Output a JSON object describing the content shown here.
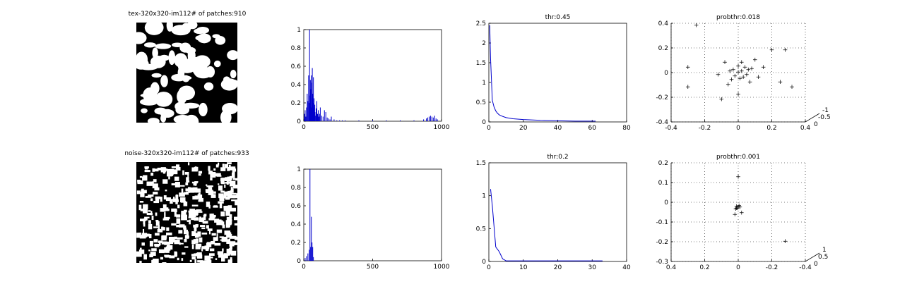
{
  "rows": [
    {
      "image_title": "tex-320x320-im112# of patches:910",
      "image_kind": "texture-image"
    },
    {
      "image_title": "noise-320x320-im112# of patches:933",
      "image_kind": "noise-image"
    }
  ],
  "chart_data": [
    {
      "id": "r1-hist",
      "type": "bar",
      "title": "",
      "xlim": [
        0,
        1000
      ],
      "ylim": [
        0,
        1
      ],
      "xticks": [
        "0",
        "500",
        "1000"
      ],
      "yticks": [
        "0",
        "0.2",
        "0.4",
        "0.6",
        "0.8",
        "1"
      ],
      "color": "#0000cc",
      "x": [
        5,
        10,
        15,
        20,
        25,
        30,
        35,
        38,
        42,
        45,
        48,
        50,
        52,
        55,
        58,
        60,
        62,
        65,
        68,
        70,
        72,
        75,
        78,
        80,
        85,
        88,
        90,
        95,
        100,
        105,
        110,
        115,
        120,
        130,
        140,
        150,
        160,
        170,
        180,
        190,
        200,
        220,
        240,
        260,
        280,
        300,
        400,
        500,
        600,
        700,
        800,
        870,
        890,
        900,
        910,
        920,
        930,
        940,
        950,
        960,
        970
      ],
      "values": [
        0.08,
        0.12,
        0.05,
        0.15,
        0.3,
        0.22,
        0.5,
        0.2,
        1,
        0.28,
        0.45,
        0.35,
        0.15,
        0.5,
        0.42,
        0.25,
        0.58,
        0.3,
        0.2,
        0.48,
        0.15,
        0.25,
        0.1,
        0.18,
        0.06,
        0.1,
        0.14,
        0.22,
        0.08,
        0.12,
        0.05,
        0.08,
        0.15,
        0.06,
        0.05,
        0.12,
        0.1,
        0.04,
        0.03,
        0.02,
        0.05,
        0.02,
        0.01,
        0.01,
        0.01,
        0.01,
        0.01,
        0.01,
        0.01,
        0.01,
        0.01,
        0.02,
        0.03,
        0.04,
        0.05,
        0.06,
        0.05,
        0.04,
        0.06,
        0.03,
        0.02
      ]
    },
    {
      "id": "r1-curve",
      "type": "line",
      "title": "thr:0.45",
      "xlim": [
        0,
        80
      ],
      "ylim": [
        0,
        2.5
      ],
      "xticks": [
        "0",
        "20",
        "40",
        "60",
        "80"
      ],
      "yticks": [
        "0",
        "0.5",
        "1",
        "1.5",
        "2",
        "2.5"
      ],
      "color": "#0000cc",
      "x": [
        0.5,
        1,
        2,
        3,
        4,
        5,
        6,
        8,
        10,
        14,
        20,
        30,
        40,
        50,
        62
      ],
      "y": [
        2.45,
        1.6,
        0.55,
        0.38,
        0.28,
        0.22,
        0.18,
        0.14,
        0.11,
        0.08,
        0.06,
        0.04,
        0.03,
        0.02,
        0.02
      ]
    },
    {
      "id": "r1-scatter",
      "type": "scatter",
      "title": "probthr:0.018",
      "xlim": [
        -0.4,
        0.4
      ],
      "ylim": [
        -0.4,
        0.4
      ],
      "xticks": [
        "-0.4",
        "-0.2",
        "0",
        "0.2",
        "0.4"
      ],
      "yticks": [
        "-0.4",
        "-0.2",
        "0",
        "0.2",
        "0.4"
      ],
      "ztick_labels": [
        "0",
        "-0.5",
        "-1"
      ],
      "color": "#888888",
      "points": [
        [
          0.0,
          0.0
        ],
        [
          0.02,
          0.01
        ],
        [
          -0.03,
          0.02
        ],
        [
          0.05,
          -0.02
        ],
        [
          0.01,
          -0.05
        ],
        [
          -0.02,
          -0.03
        ],
        [
          0.04,
          0.04
        ],
        [
          -0.05,
          0.01
        ],
        [
          0.06,
          0.02
        ],
        [
          0.0,
          0.05
        ],
        [
          0.03,
          -0.04
        ],
        [
          -0.04,
          -0.06
        ],
        [
          0.08,
          0.03
        ],
        [
          0.1,
          0.1
        ],
        [
          -0.08,
          0.08
        ],
        [
          0.15,
          0.04
        ],
        [
          -0.12,
          -0.02
        ],
        [
          0.2,
          0.18
        ],
        [
          0.28,
          0.18
        ],
        [
          -0.3,
          0.04
        ],
        [
          -0.3,
          -0.12
        ],
        [
          0.25,
          -0.08
        ],
        [
          -0.25,
          0.38
        ],
        [
          0.32,
          -0.12
        ],
        [
          0.0,
          -0.18
        ],
        [
          -0.1,
          -0.22
        ],
        [
          0.12,
          -0.04
        ],
        [
          0.07,
          -0.08
        ],
        [
          -0.06,
          -0.1
        ],
        [
          0.02,
          0.08
        ]
      ]
    },
    {
      "id": "r2-hist",
      "type": "bar",
      "title": "",
      "xlim": [
        0,
        1000
      ],
      "ylim": [
        0,
        1
      ],
      "xticks": [
        "0",
        "500",
        "1000"
      ],
      "yticks": [
        "0",
        "0.2",
        "0.4",
        "0.6",
        "0.8",
        "1"
      ],
      "color": "#0000cc",
      "x": [
        10,
        20,
        30,
        40,
        45,
        50,
        55,
        60,
        65,
        70
      ],
      "values": [
        0.03,
        0.05,
        0.08,
        0.12,
        1,
        0.15,
        0.48,
        0.2,
        0.15,
        0.04
      ]
    },
    {
      "id": "r2-curve",
      "type": "line",
      "title": "thr:0.2",
      "xlim": [
        0,
        40
      ],
      "ylim": [
        0,
        1.5
      ],
      "xticks": [
        "0",
        "10",
        "20",
        "30",
        "40"
      ],
      "yticks": [
        "0",
        "0.5",
        "1",
        "1.5"
      ],
      "color": "#0000cc",
      "x": [
        0.5,
        1,
        2,
        3,
        4,
        5,
        10,
        20,
        33
      ],
      "y": [
        1.1,
        0.85,
        0.22,
        0.15,
        0.04,
        0.01,
        0.01,
        0.01,
        0.01
      ]
    },
    {
      "id": "r2-scatter",
      "type": "scatter",
      "title": "probthr:0.001",
      "xlim": [
        0.4,
        -0.4
      ],
      "ylim": [
        -0.3,
        0.25
      ],
      "xticks": [
        "0.4",
        "0.2",
        "0",
        "-0.2",
        "-0.4"
      ],
      "yticks": [
        "-0.3",
        "-0.2",
        "-0.1",
        "0",
        "0.1",
        "0.2"
      ],
      "ztick_labels": [
        "0",
        "0.5",
        "1"
      ],
      "color": "#888888",
      "points": [
        [
          0.0,
          0.0
        ],
        [
          0.01,
          0.005
        ],
        [
          -0.01,
          0.0
        ],
        [
          0.005,
          -0.005
        ],
        [
          -0.005,
          0.008
        ],
        [
          0.015,
          -0.01
        ],
        [
          -0.02,
          -0.03
        ],
        [
          0.02,
          -0.04
        ],
        [
          0.0,
          0.17
        ],
        [
          -0.28,
          -0.19
        ],
        [
          0.01,
          -0.005
        ]
      ]
    }
  ]
}
